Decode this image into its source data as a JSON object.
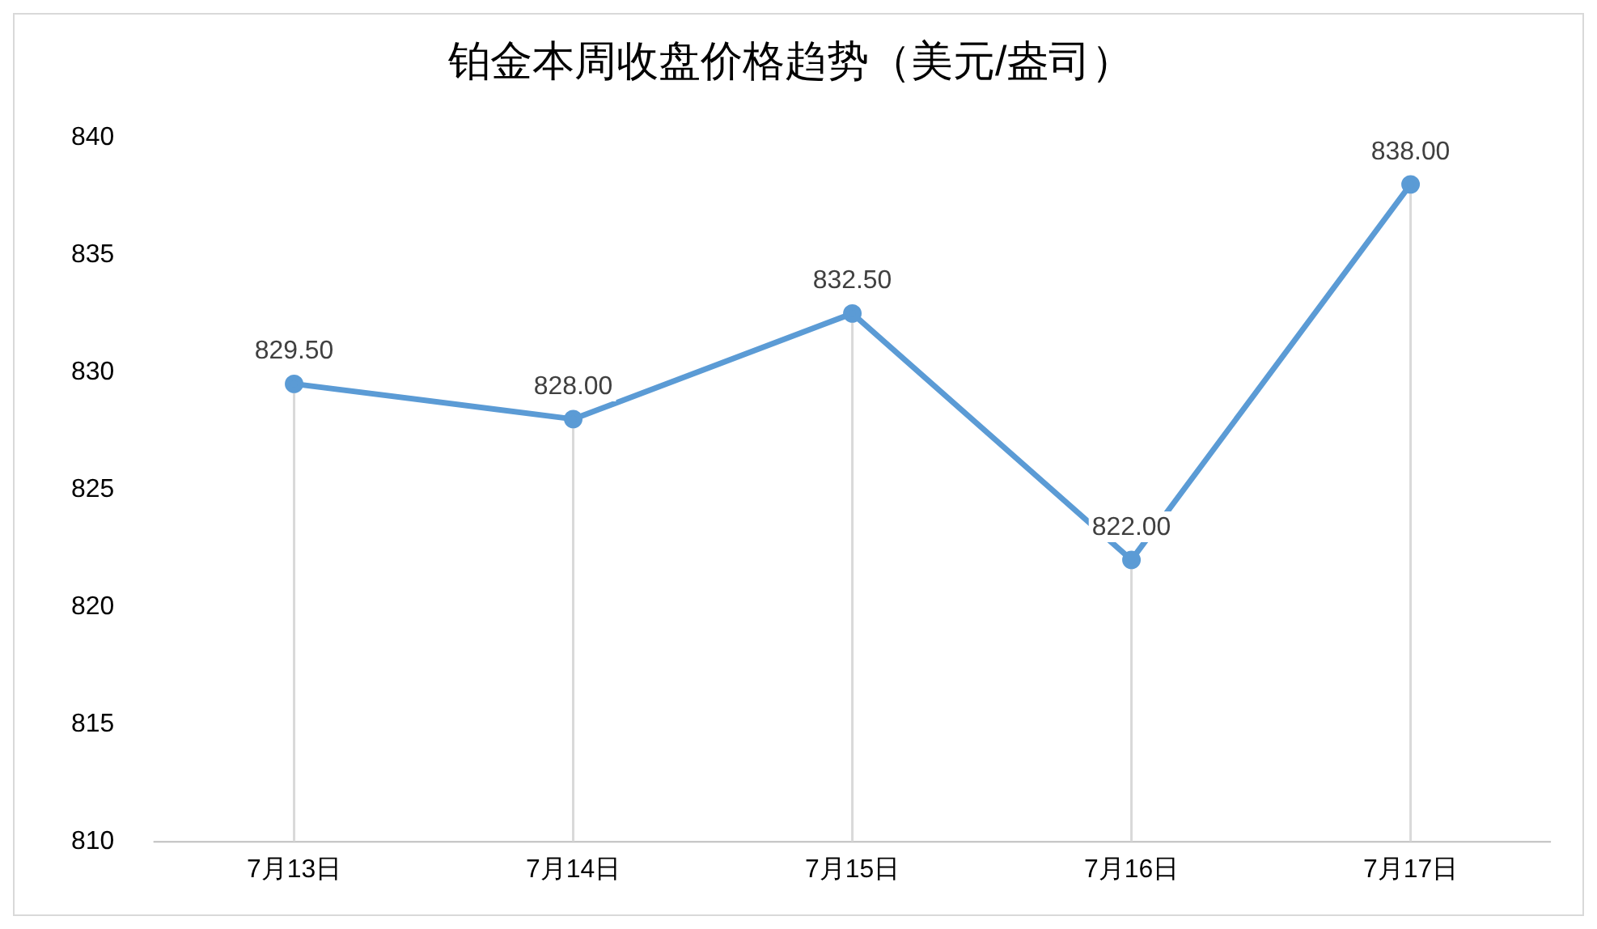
{
  "chart_data": {
    "type": "line",
    "title": "铂金本周收盘价格趋势（美元/盎司）",
    "categories": [
      "7月13日",
      "7月14日",
      "7月15日",
      "7月16日",
      "7月17日"
    ],
    "series": [
      {
        "color": "#5b9bd5",
        "values": [
          829.5,
          828,
          832.5,
          822,
          838
        ],
        "value_labels": [
          "829.50",
          "828.00",
          "832.50",
          "822.00",
          "838.00"
        ]
      }
    ],
    "ylim": [
      810,
      840
    ],
    "yticks": [
      810,
      815,
      820,
      825,
      830,
      835,
      840
    ],
    "grid": "x",
    "legend": false,
    "marker": "circle",
    "line_style": "solid"
  }
}
